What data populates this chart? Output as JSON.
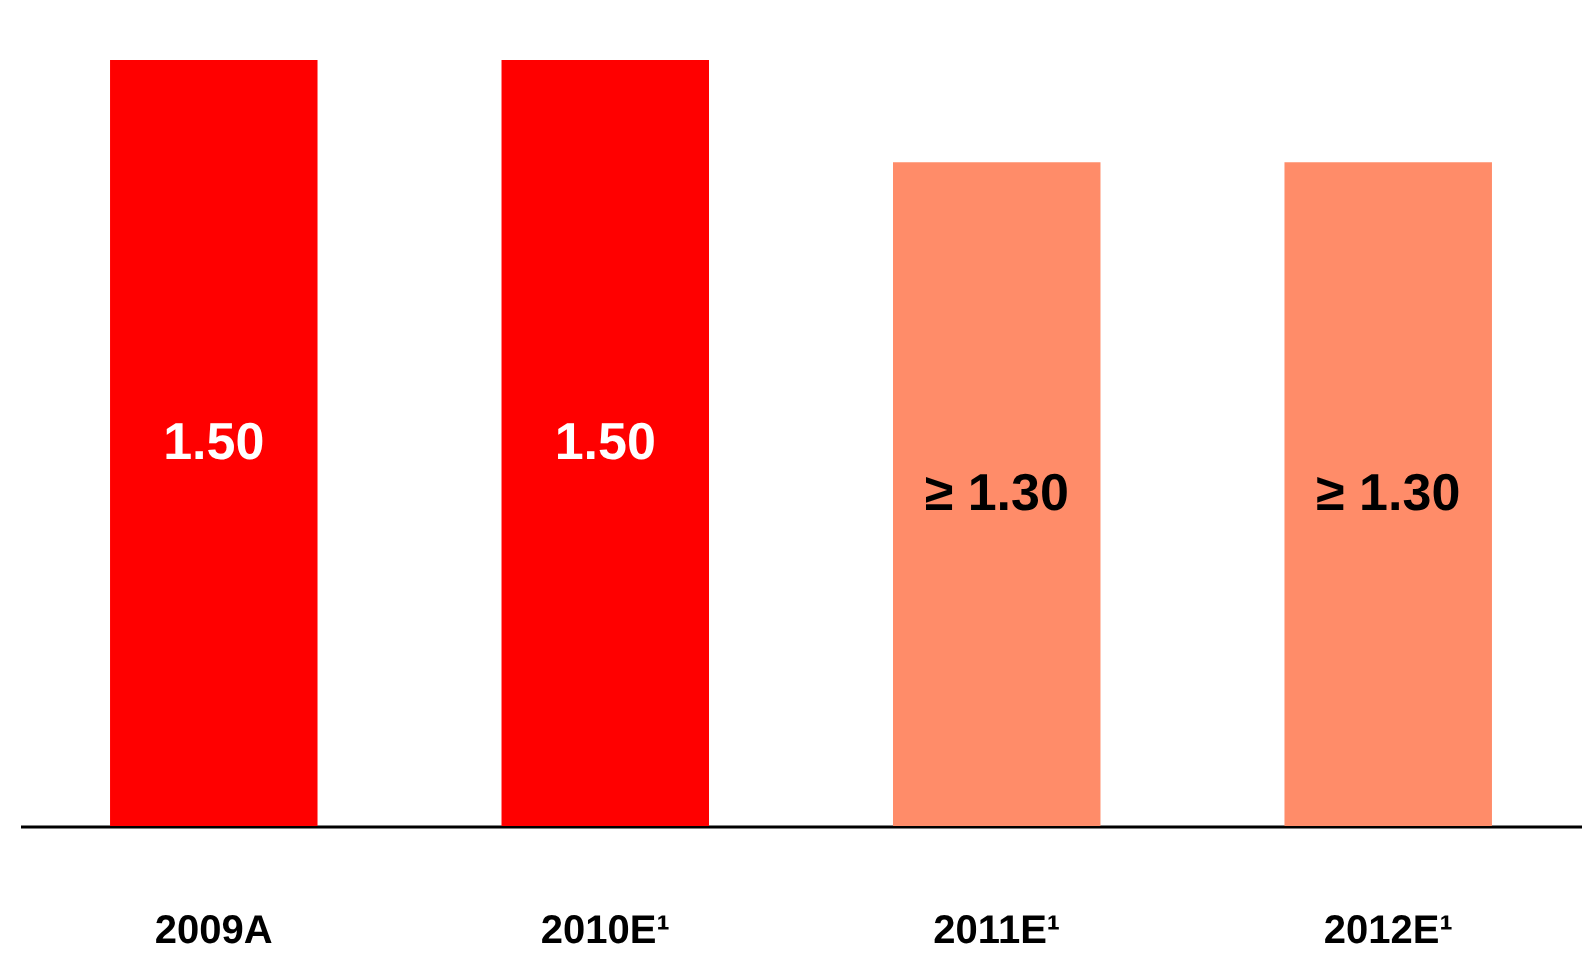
{
  "chart_data": {
    "type": "bar",
    "categories": [
      "2009A",
      "2010E¹",
      "2011E¹",
      "2012E¹"
    ],
    "values": [
      1.5,
      1.5,
      1.3,
      1.3
    ],
    "colors": [
      "#ff0000",
      "#ff0000",
      "#ff8c69",
      "#ff8c69"
    ],
    "value_labels": [
      "1.50",
      "1.50",
      "≥ 1.30",
      "≥ 1.30"
    ],
    "grid": false
  }
}
